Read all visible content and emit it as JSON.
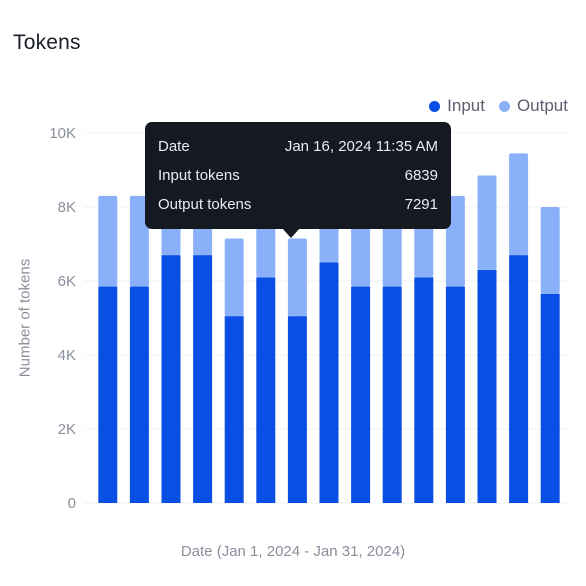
{
  "chart_data": {
    "type": "bar",
    "stacked": true,
    "title": "Tokens",
    "xlabel": "Date (Jan 1, 2024 - Jan 31, 2024)",
    "ylabel": "Number of tokens",
    "ylim": [
      0,
      10000
    ],
    "yticks": [
      0,
      2000,
      4000,
      6000,
      8000,
      10000
    ],
    "ytick_labels": [
      "0",
      "2K",
      "4K",
      "6K",
      "8K",
      "10K"
    ],
    "legend_position": "top-right",
    "grid": true,
    "series": [
      {
        "name": "Input",
        "color": "#0a4fe4",
        "values": [
          5850,
          5850,
          6700,
          6700,
          5050,
          6100,
          5050,
          6500,
          5850,
          5850,
          6100,
          5850,
          6300,
          6700,
          5650
        ]
      },
      {
        "name": "Output",
        "color": "#8bb0fa",
        "values": [
          2450,
          2450,
          1600,
          1600,
          2100,
          2200,
          2100,
          1800,
          2450,
          2450,
          2200,
          2450,
          2550,
          2750,
          2350
        ]
      }
    ]
  },
  "tooltip": {
    "rows": [
      {
        "label": "Date",
        "value": "Jan 16, 2024 11:35 AM"
      },
      {
        "label": "Input tokens",
        "value": "6839"
      },
      {
        "label": "Output tokens",
        "value": "7291"
      }
    ]
  }
}
